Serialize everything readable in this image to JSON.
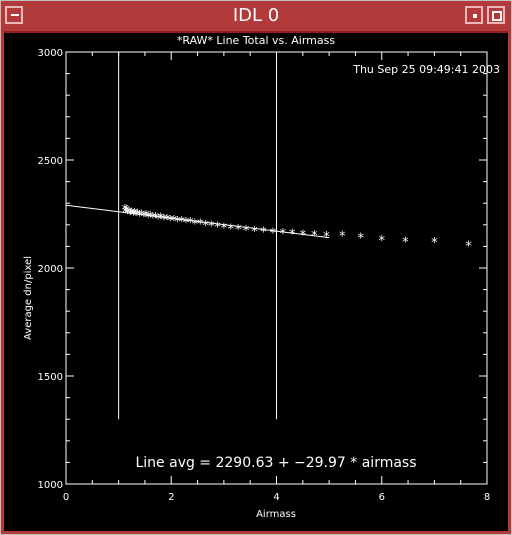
{
  "window": {
    "title": "IDL 0"
  },
  "plot": {
    "title": "*RAW* Line Total vs. Airmass",
    "timestamp": "Thu Sep 25 09:49:41 2003",
    "fit_text": "Line avg = 2290.63 + −29.97 * airmass"
  },
  "chart_data": {
    "type": "scatter",
    "title": "*RAW* Line Total vs. Airmass",
    "xlabel": "Airmass",
    "ylabel": "Average dn/pixel",
    "xlim": [
      0,
      8
    ],
    "ylim": [
      1000,
      3000
    ],
    "xticks": [
      "0",
      "2",
      "4",
      "6",
      "8"
    ],
    "yticks": [
      "1000",
      "1500",
      "2000",
      "2500",
      "3000"
    ],
    "grid": false,
    "vertical_lines_x": [
      1,
      4
    ],
    "vertical_lines_range": [
      1300,
      3000
    ],
    "fit": {
      "intercept": 2290.63,
      "slope": -29.97,
      "x_range": [
        0,
        5
      ]
    },
    "points": [
      [
        1.12,
        2272
      ],
      [
        1.13,
        2260
      ],
      [
        1.15,
        2268
      ],
      [
        1.17,
        2255
      ],
      [
        1.2,
        2262
      ],
      [
        1.22,
        2250
      ],
      [
        1.25,
        2258
      ],
      [
        1.28,
        2248
      ],
      [
        1.3,
        2255
      ],
      [
        1.33,
        2246
      ],
      [
        1.36,
        2252
      ],
      [
        1.4,
        2243
      ],
      [
        1.44,
        2248
      ],
      [
        1.48,
        2240
      ],
      [
        1.52,
        2245
      ],
      [
        1.56,
        2237
      ],
      [
        1.6,
        2241
      ],
      [
        1.65,
        2234
      ],
      [
        1.7,
        2237
      ],
      [
        1.75,
        2230
      ],
      [
        1.8,
        2233
      ],
      [
        1.86,
        2226
      ],
      [
        1.92,
        2228
      ],
      [
        1.98,
        2222
      ],
      [
        2.05,
        2223
      ],
      [
        2.12,
        2217
      ],
      [
        2.2,
        2218
      ],
      [
        2.28,
        2212
      ],
      [
        2.36,
        2212
      ],
      [
        2.45,
        2207
      ],
      [
        2.55,
        2205
      ],
      [
        2.65,
        2200
      ],
      [
        2.76,
        2197
      ],
      [
        2.88,
        2192
      ],
      [
        3.0,
        2188
      ],
      [
        3.13,
        2184
      ],
      [
        3.27,
        2180
      ],
      [
        3.42,
        2176
      ],
      [
        3.58,
        2172
      ],
      [
        3.75,
        2168
      ],
      [
        3.93,
        2164
      ],
      [
        4.12,
        2162
      ],
      [
        4.3,
        2160
      ],
      [
        4.5,
        2156
      ],
      [
        4.72,
        2153
      ],
      [
        4.95,
        2148
      ],
      [
        5.25,
        2150
      ],
      [
        5.6,
        2142
      ],
      [
        6.0,
        2130
      ],
      [
        6.45,
        2122
      ],
      [
        7.0,
        2120
      ],
      [
        7.65,
        2105
      ]
    ]
  }
}
